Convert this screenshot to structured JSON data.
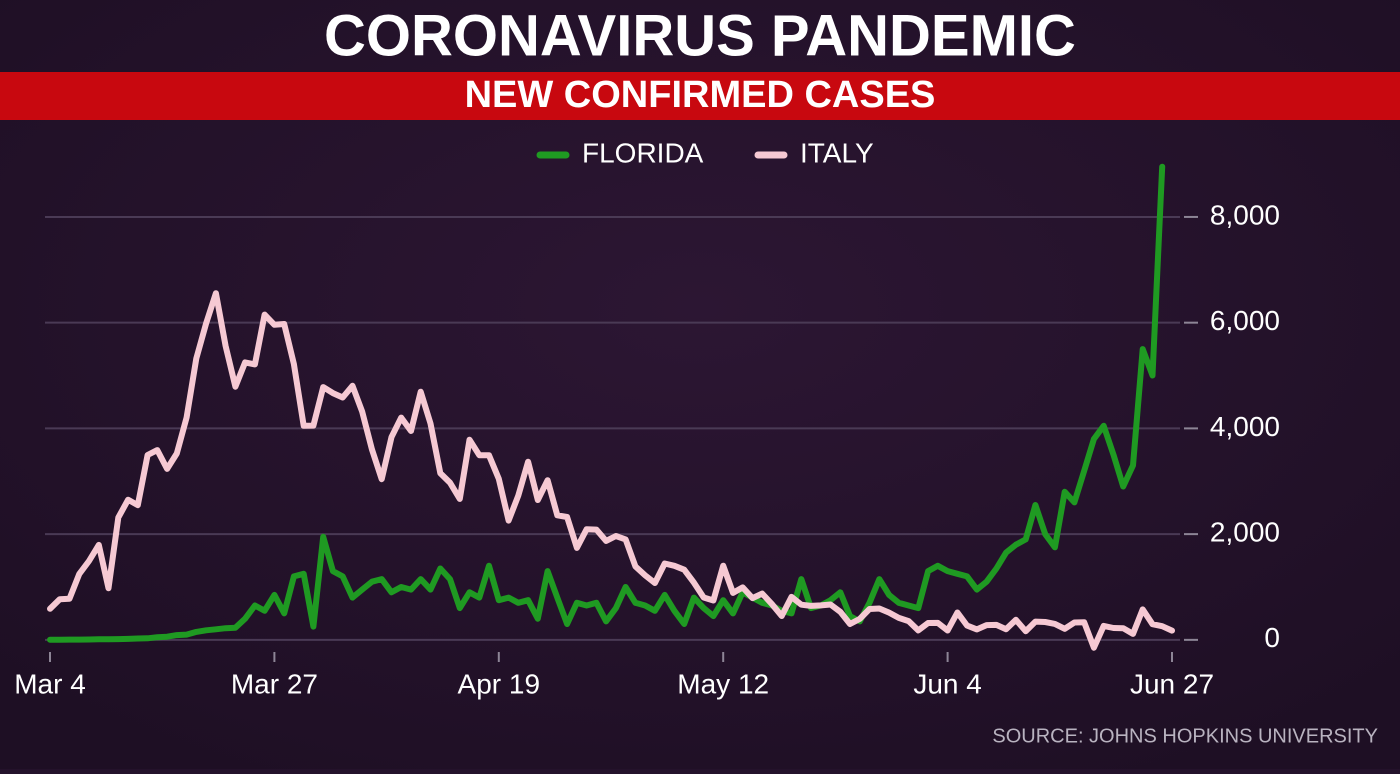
{
  "chart_data": {
    "type": "line",
    "title": "CORONAVIRUS PANDEMIC",
    "subtitle": "NEW CONFIRMED CASES",
    "source": "SOURCE: JOHNS HOPKINS UNIVERSITY",
    "categories": [
      "Mar 4",
      null,
      null,
      null,
      null,
      null,
      null,
      null,
      null,
      null,
      null,
      null,
      null,
      null,
      null,
      null,
      null,
      null,
      null,
      null,
      null,
      null,
      null,
      "Mar 27",
      null,
      null,
      null,
      null,
      null,
      null,
      null,
      null,
      null,
      null,
      null,
      null,
      null,
      null,
      null,
      null,
      null,
      null,
      null,
      null,
      null,
      null,
      "Apr 19",
      null,
      null,
      null,
      null,
      null,
      null,
      null,
      null,
      null,
      null,
      null,
      null,
      null,
      null,
      null,
      null,
      null,
      null,
      null,
      null,
      null,
      null,
      "May 12",
      null,
      null,
      null,
      null,
      null,
      null,
      null,
      null,
      null,
      null,
      null,
      null,
      null,
      null,
      null,
      null,
      null,
      null,
      null,
      null,
      null,
      null,
      "Jun 4",
      null,
      null,
      null,
      null,
      null,
      null,
      null,
      null,
      null,
      null,
      null,
      null,
      null,
      null,
      null,
      null,
      null,
      null,
      null,
      null,
      null,
      null,
      "Jun 27"
    ],
    "series": [
      {
        "name": "FLORIDA",
        "color": "#1f9a22",
        "values": [
          2,
          3,
          4,
          5,
          7,
          10,
          11,
          14,
          18,
          25,
          30,
          50,
          60,
          90,
          100,
          150,
          180,
          200,
          220,
          230,
          400,
          650,
          550,
          850,
          500,
          1200,
          1250,
          250,
          1950,
          1300,
          1200,
          800,
          950,
          1100,
          1150,
          900,
          1000,
          950,
          1150,
          950,
          1350,
          1150,
          600,
          900,
          800,
          1400,
          750,
          800,
          700,
          750,
          400,
          1300,
          800,
          300,
          700,
          650,
          700,
          350,
          600,
          1000,
          700,
          650,
          550,
          850,
          550,
          300,
          800,
          600,
          450,
          750,
          500,
          900,
          800,
          700,
          650,
          550,
          500,
          1150,
          600,
          650,
          750,
          900,
          450,
          350,
          700,
          1150,
          850,
          700,
          650,
          600,
          1300,
          1400,
          1300,
          1250,
          1200,
          950,
          1100,
          1350,
          1650,
          1800,
          1900,
          2550,
          2000,
          1750,
          2800,
          2600,
          3200,
          3800,
          4050,
          3500,
          2900,
          3300,
          5500,
          5000,
          8950,
          null
        ]
      },
      {
        "name": "ITALY",
        "color": "#f6c9d3",
        "values": [
          587,
          769,
          778,
          1247,
          1492,
          1797,
          977,
          2313,
          2651,
          2547,
          3497,
          3590,
          3233,
          3526,
          4207,
          5322,
          5986,
          6557,
          5560,
          4789,
          5249,
          5210,
          6153,
          5959,
          5974,
          5217,
          4050,
          4053,
          4782,
          4668,
          4585,
          4805,
          4316,
          3599,
          3039,
          3836,
          4204,
          3951,
          4694,
          4092,
          3153,
          2972,
          2667,
          3786,
          3493,
          3491,
          3047,
          2256,
          2729,
          3370,
          2646,
          3021,
          2357,
          2324,
          1739,
          2091,
          2086,
          1872,
          1965,
          1900,
          1389,
          1221,
          1075,
          1444,
          1401,
          1327,
          1083,
          802,
          744,
          1402,
          888,
          992,
          789,
          875,
          675,
          451,
          813,
          665,
          642,
          652,
          669,
          531,
          300,
          397,
          584,
          593,
          516,
          416,
          355,
          178,
          318,
          321,
          177,
          518,
          270,
          197,
          280,
          283,
          202,
          379,
          163,
          346,
          338,
          301,
          210,
          328,
          333,
          -148,
          264,
          224,
          221,
          113,
          577,
          296,
          259,
          175
        ]
      }
    ],
    "ylim": [
      -400,
      9200
    ],
    "yticks": [
      0,
      {
        "value": 2000,
        "label": "2,000"
      },
      {
        "value": 4000,
        "label": "4,000"
      },
      {
        "value": 6000,
        "label": "6,000"
      },
      {
        "value": 8000,
        "label": "8,000"
      }
    ],
    "grid": true
  }
}
